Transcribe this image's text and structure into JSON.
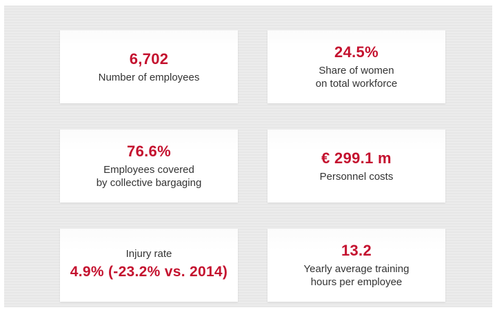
{
  "cards": [
    {
      "value": "6,702",
      "label_line1": "Number of employees",
      "label_line2": ""
    },
    {
      "value": "24.5%",
      "label_line1": "Share of women",
      "label_line2": "on total workforce"
    },
    {
      "value": "76.6%",
      "label_line1": "Employees covered",
      "label_line2": "by collective bargaging"
    },
    {
      "value": "€ 299.1 m",
      "label_line1": "Personnel costs",
      "label_line2": ""
    },
    {
      "label_top": "Injury rate",
      "value": "4.9% (-23.2% vs. 2014)"
    },
    {
      "value": "13.2",
      "label_line1": "Yearly average training",
      "label_line2": "hours per employee"
    }
  ],
  "colors": {
    "accent": "#c4122f",
    "text": "#333333",
    "card_background": "#ffffff",
    "panel_background": "#e9e9e9"
  }
}
